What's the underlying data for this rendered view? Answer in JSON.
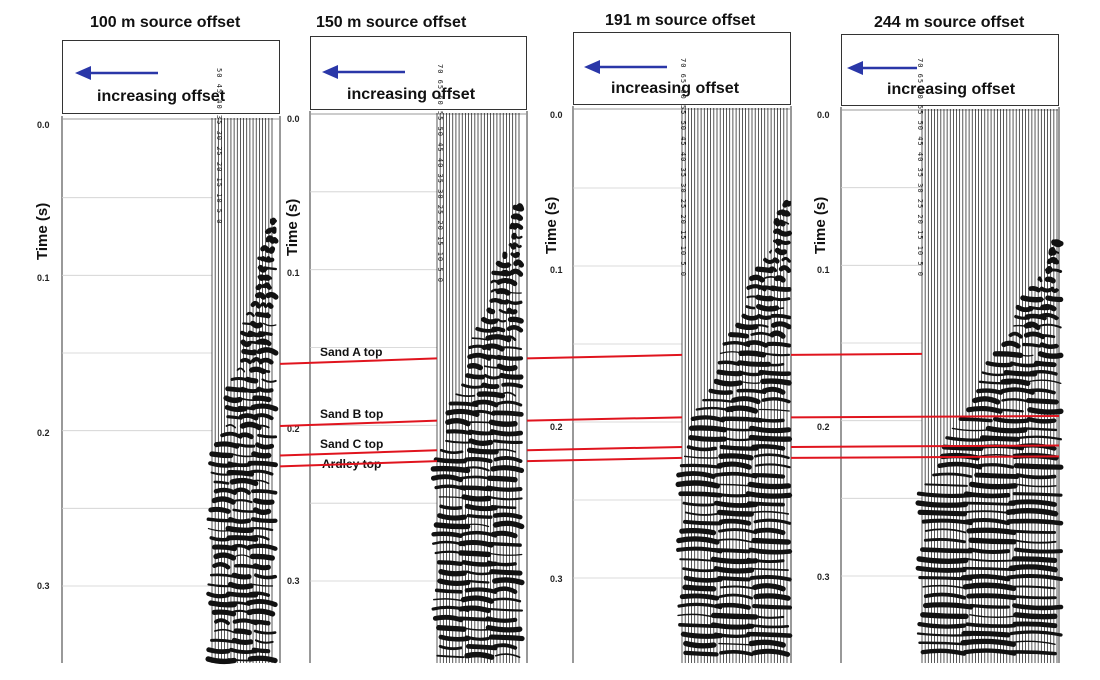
{
  "panels": [
    {
      "title": "100 m source offset",
      "arrow_label": "increasing offset",
      "trace_numbers": "50 45 40 35 30 25 20 15 10 5 0"
    },
    {
      "title": "150 m source offset",
      "arrow_label": "increasing offset",
      "trace_numbers": "70 65 60 55 50 45 40 35 30 25 20 15 10 5 0"
    },
    {
      "title": "191 m source offset",
      "arrow_label": "increasing offset",
      "trace_numbers": "70 65 60 55 50 45 40 35 30 25 20 15 10 5 0"
    },
    {
      "title": "244 m source offset",
      "arrow_label": "increasing offset",
      "trace_numbers": "70 65 60 55 50 45 40 35 30 25 20 15 10 5 0"
    }
  ],
  "time_axis": {
    "title": "Time (s)",
    "ticks": [
      "0.0",
      "0.1",
      "0.2",
      "0.3"
    ]
  },
  "horizons": [
    {
      "label": "Sand A top",
      "time": 0.157
    },
    {
      "label": "Sand B top",
      "time": 0.197
    },
    {
      "label": "Sand C top",
      "time": 0.216
    },
    {
      "label": "Ardley top",
      "time": 0.223
    }
  ],
  "colors": {
    "horizon": "#e0141e",
    "arrow": "#2a37a8",
    "trace": "#111111"
  }
}
